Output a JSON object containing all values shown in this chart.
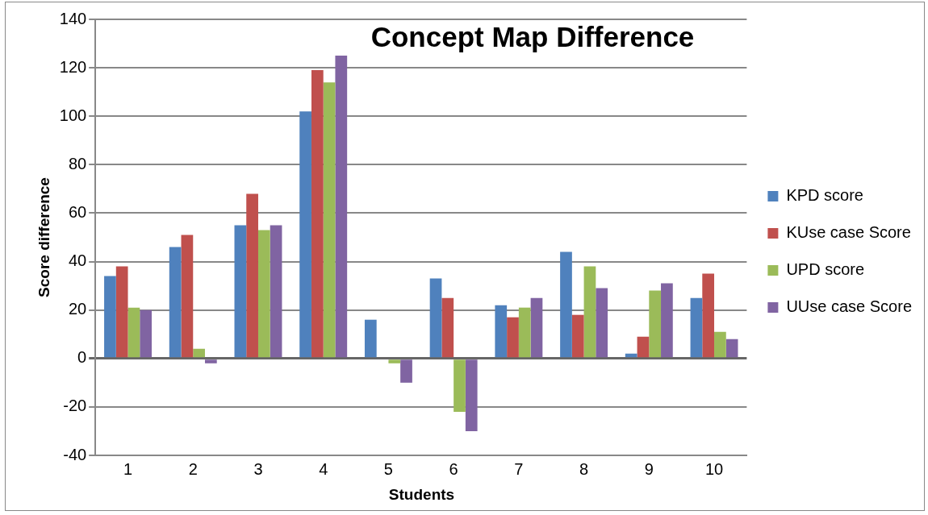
{
  "chart_data": {
    "type": "bar",
    "title": "Concept Map Difference",
    "xlabel": "Students",
    "ylabel": "Score difference",
    "categories": [
      "1",
      "2",
      "3",
      "4",
      "5",
      "6",
      "7",
      "8",
      "9",
      "10"
    ],
    "series": [
      {
        "name": "KPD score",
        "color": "#4f81bd",
        "values": [
          34,
          46,
          55,
          102,
          16,
          33,
          22,
          44,
          2,
          25
        ]
      },
      {
        "name": "KUse case Score",
        "color": "#c0504d",
        "values": [
          38,
          51,
          68,
          119,
          0,
          25,
          17,
          18,
          9,
          35
        ]
      },
      {
        "name": "UPD score",
        "color": "#9bbb59",
        "values": [
          21,
          4,
          53,
          114,
          -2,
          -22,
          21,
          38,
          28,
          11
        ]
      },
      {
        "name": "UUse case Score",
        "color": "#8064a2",
        "values": [
          20,
          -2,
          55,
          125,
          -10,
          -30,
          25,
          29,
          31,
          8
        ]
      }
    ],
    "ylim": [
      -40,
      140
    ],
    "yticks": [
      -40,
      -20,
      0,
      20,
      40,
      60,
      80,
      100,
      120,
      140
    ],
    "grid": "y",
    "legend": "right"
  }
}
